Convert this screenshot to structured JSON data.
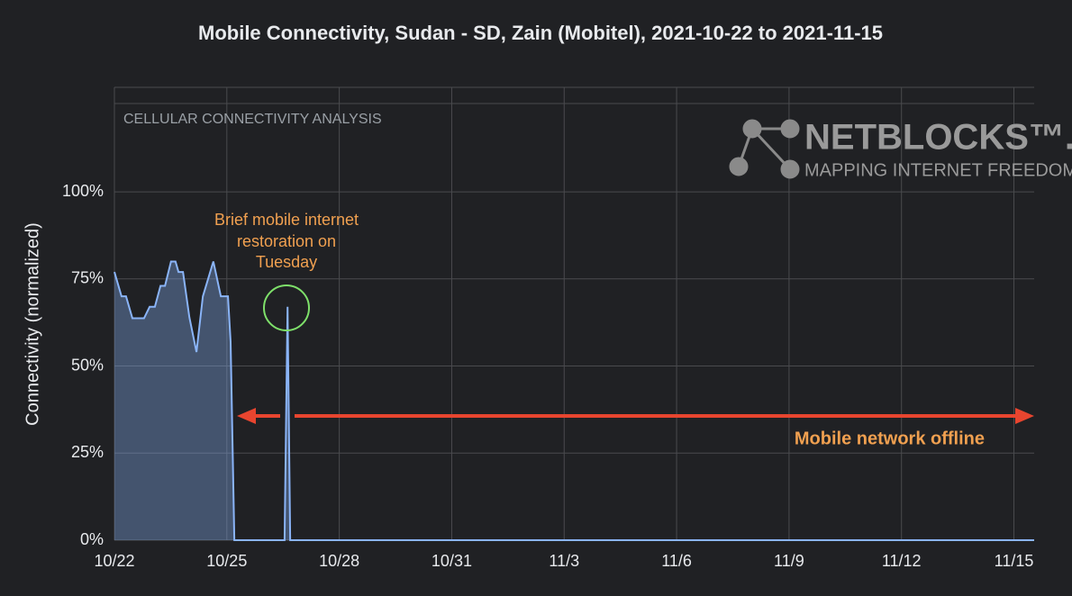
{
  "chart_data": {
    "type": "area",
    "title": "Mobile Connectivity, Sudan - SD, Zain (Mobitel), 2021-10-22 to 2021-11-15",
    "y_label": "Connectivity (normalized)",
    "x": [
      0,
      0.19,
      0.31,
      0.48,
      0.79,
      0.94,
      1.08,
      1.23,
      1.35,
      1.51,
      1.63,
      1.71,
      1.83,
      2.0,
      2.19,
      2.36,
      2.64,
      2.84,
      3.03,
      3.1,
      3.2,
      4.54,
      4.62,
      4.69,
      24.54
    ],
    "series": [
      {
        "name": "Connectivity",
        "color": "#8ab4f8",
        "values": [
          77,
          70,
          70,
          63.7,
          63.7,
          67,
          67,
          73,
          73,
          80,
          80,
          77,
          77,
          64,
          54,
          70,
          80,
          70,
          70,
          57,
          0,
          0,
          67,
          0,
          0
        ]
      }
    ],
    "xlim": [
      0,
      24.54
    ],
    "xticks": [
      {
        "value": 0,
        "label": "10/22"
      },
      {
        "value": 3,
        "label": "10/25"
      },
      {
        "value": 6,
        "label": "10/28"
      },
      {
        "value": 9,
        "label": "10/31"
      },
      {
        "value": 12,
        "label": "11/3"
      },
      {
        "value": 15,
        "label": "11/6"
      },
      {
        "value": 18,
        "label": "11/9"
      },
      {
        "value": 21,
        "label": "11/12"
      },
      {
        "value": 24,
        "label": "11/15"
      }
    ],
    "ylim": [
      0,
      130
    ],
    "yticks": [
      {
        "value": 0,
        "label": "0%"
      },
      {
        "value": 25,
        "label": "25%"
      },
      {
        "value": 50,
        "label": "50%"
      },
      {
        "value": 75,
        "label": "75%"
      },
      {
        "value": 100,
        "label": "100%"
      }
    ],
    "grid": true,
    "annotations": {
      "watermark": "CELLULAR CONNECTIVITY ANALYSIS",
      "logo": "NETBLOCKS™.ORG",
      "logo_tagline": "MAPPING INTERNET FREEDOM",
      "restoration": [
        "Brief mobile internet",
        "restoration on",
        "Tuesday"
      ],
      "offline": "Mobile network offline"
    }
  }
}
